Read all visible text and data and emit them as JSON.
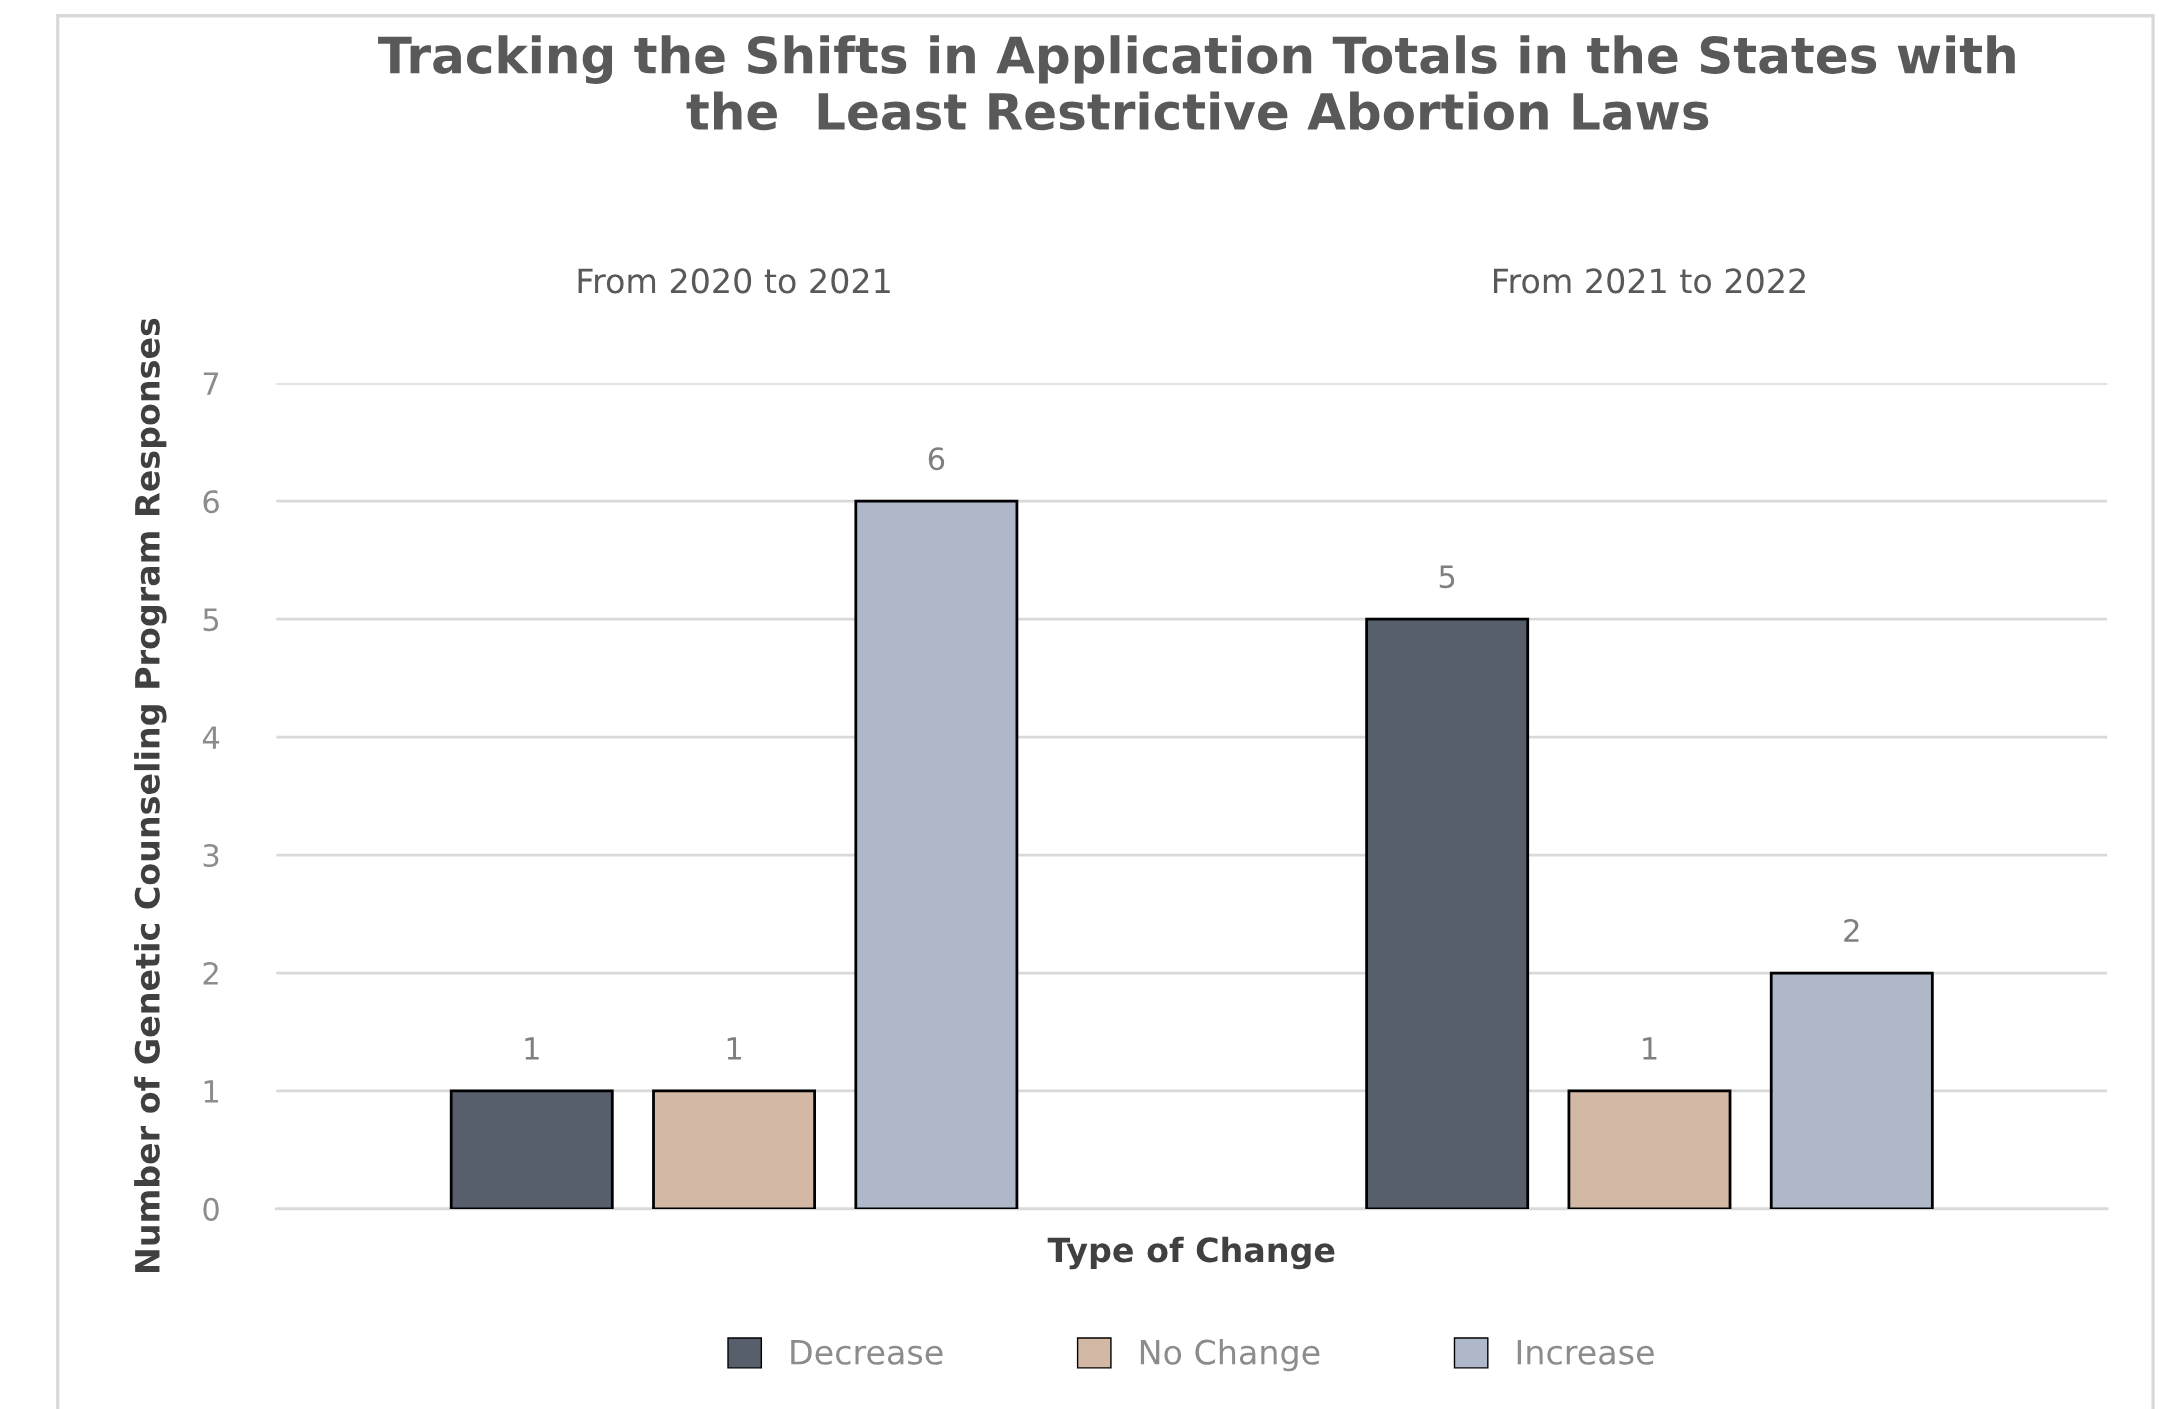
{
  "chart_data": {
    "type": "bar",
    "title": "Tracking the Shifts in Application Totals in the States with\nthe  Least Restrictive Abortion Laws",
    "categories": [
      "From 2020 to 2021",
      "From 2021 to 2022"
    ],
    "series": [
      {
        "name": "Decrease",
        "color": "#575e6c",
        "values": [
          1,
          5
        ]
      },
      {
        "name": "No Change",
        "color": "#d3b9a5",
        "values": [
          1,
          1
        ]
      },
      {
        "name": "Increase",
        "color": "#aeb8c9",
        "values": [
          6,
          2
        ]
      }
    ],
    "xlabel": "Type of Change",
    "ylabel": "Number of Genetic Counseling Program Responses",
    "ylim": [
      0,
      7
    ],
    "yticks": [
      0,
      1,
      2,
      3,
      4,
      5,
      6,
      7
    ],
    "grid": "y",
    "legend": "bottom",
    "data_labels": true
  }
}
